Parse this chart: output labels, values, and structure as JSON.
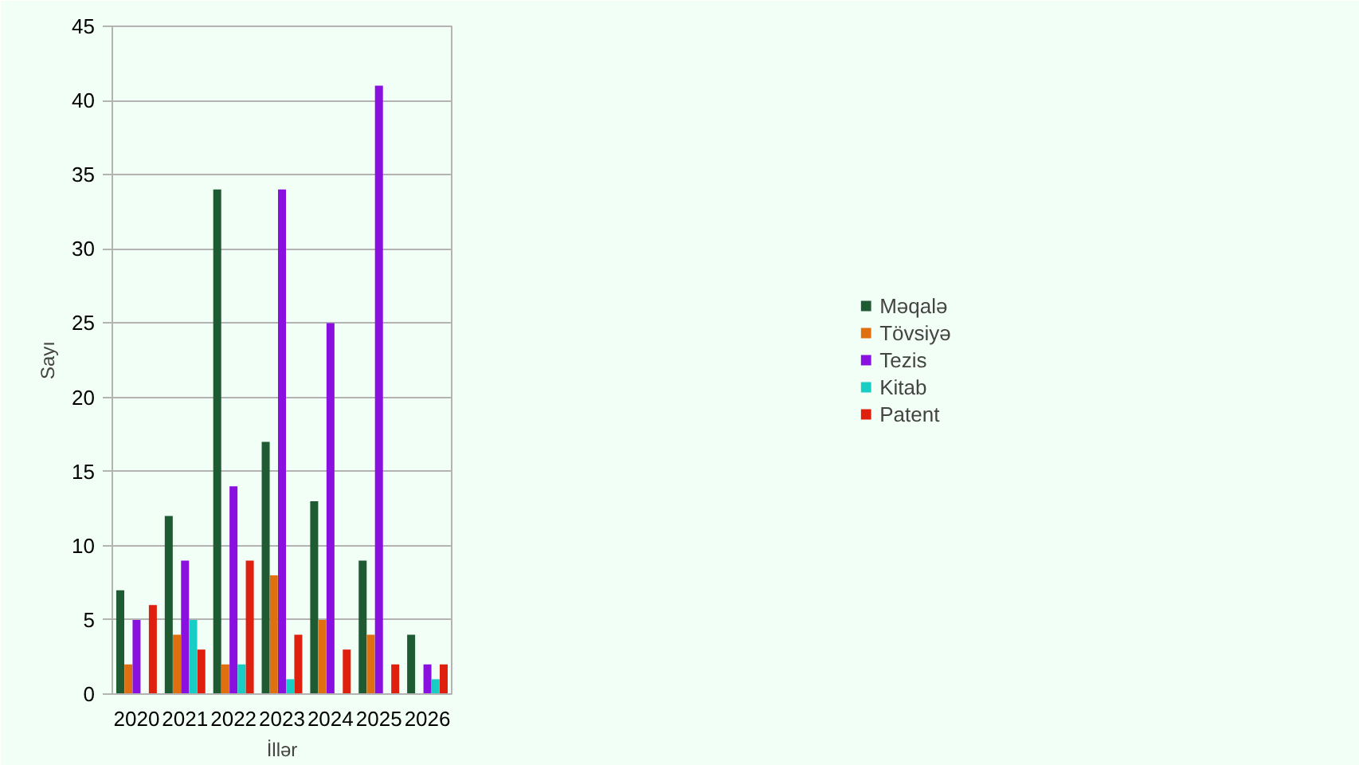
{
  "chart_data": {
    "type": "bar",
    "xlabel": "İllər",
    "ylabel": "Sayı",
    "categories": [
      "2020",
      "2021",
      "2022",
      "2023",
      "2024",
      "2025",
      "2026"
    ],
    "series": [
      {
        "name": "Məqalə",
        "color": "#1e5a32",
        "values": [
          7,
          12,
          34,
          17,
          13,
          9,
          4
        ]
      },
      {
        "name": "Tövsiyə",
        "color": "#e0700f",
        "values": [
          2,
          4,
          2,
          8,
          5,
          4,
          0
        ]
      },
      {
        "name": "Tezis",
        "color": "#8a10e0",
        "values": [
          5,
          9,
          14,
          34,
          25,
          41,
          2
        ]
      },
      {
        "name": "Kitab",
        "color": "#18cdc4",
        "values": [
          0,
          5,
          2,
          1,
          0,
          0,
          1
        ]
      },
      {
        "name": "Patent",
        "color": "#e0200f",
        "values": [
          6,
          3,
          9,
          4,
          3,
          2,
          2
        ]
      }
    ],
    "ylim": [
      0,
      45
    ],
    "yticks": [
      0,
      5,
      10,
      15,
      20,
      25,
      30,
      35,
      40,
      45
    ],
    "grid": "y",
    "legend": "right"
  }
}
